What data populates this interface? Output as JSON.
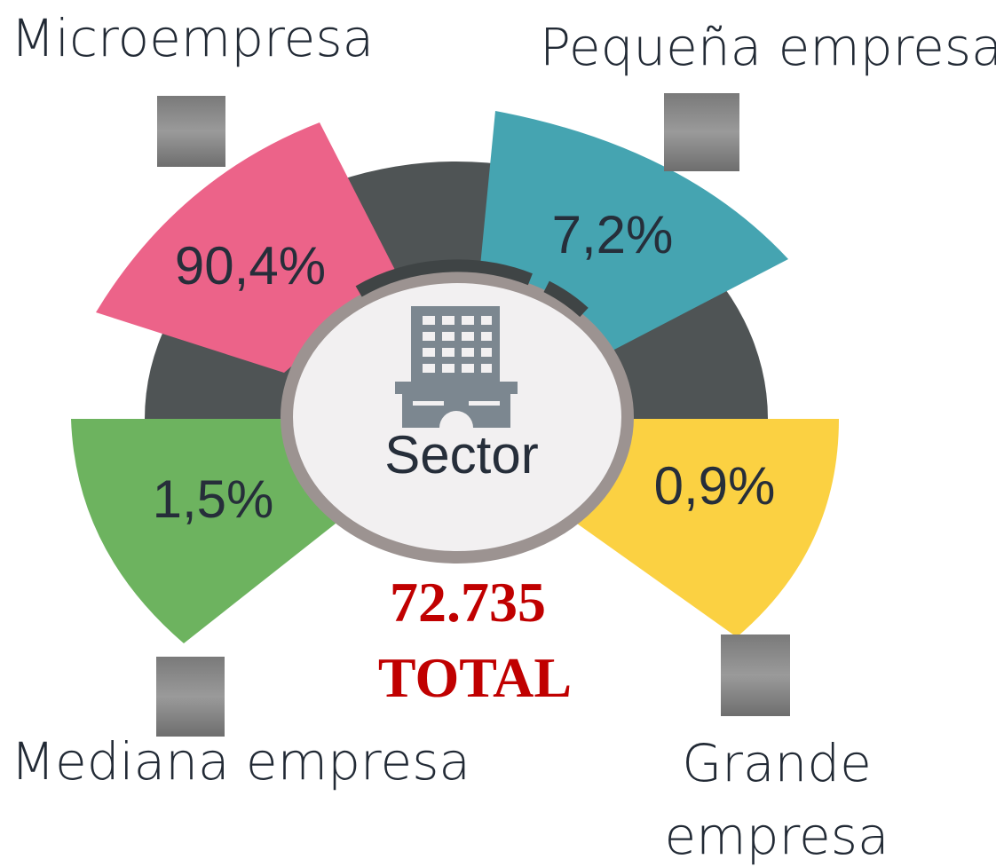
{
  "center_label": "Sector",
  "total": {
    "value": "72.735",
    "label": "TOTAL"
  },
  "segments": [
    {
      "name": [
        "Microempresa"
      ],
      "value_label": "90,4%"
    },
    {
      "name": [
        "Pequeña empresa"
      ],
      "value_label": "7,2%"
    },
    {
      "name": [
        "Mediana empresa"
      ],
      "value_label": "1,5%"
    },
    {
      "name": [
        "Grande",
        "empresa"
      ],
      "value_label": "0,9%"
    }
  ]
}
